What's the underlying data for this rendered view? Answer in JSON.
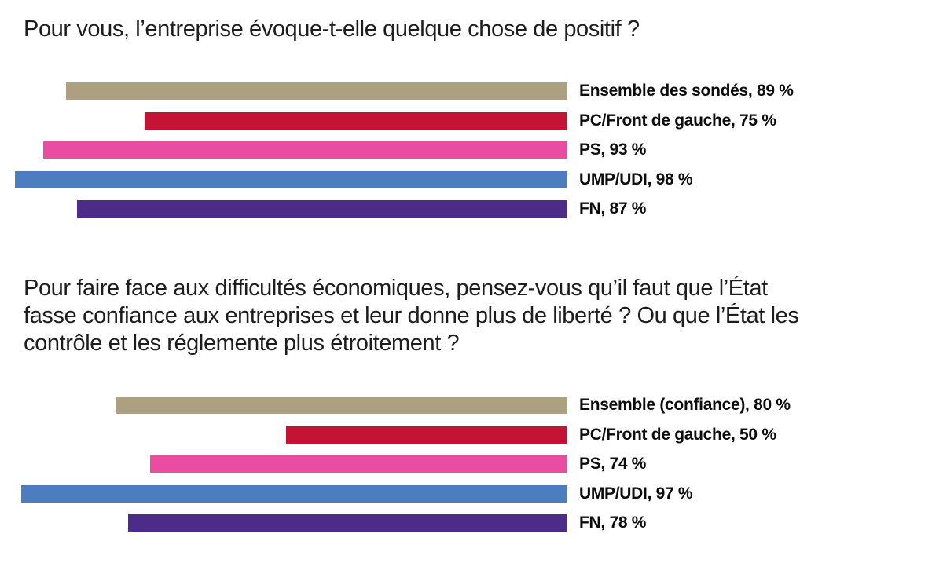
{
  "question1": {
    "text": "Pour vous, l’entreprise évoque-t-elle quelque chose de positif ?"
  },
  "question2": {
    "lines": [
      "Pour faire face aux difficultés économiques, pensez-vous qu’il faut que l’État",
      "fasse confiance aux entreprises et leur donne plus de liberté ? Ou que l’État les",
      "contrôle et les réglemente plus étroitement ?"
    ]
  },
  "chart_data": [
    {
      "type": "bar",
      "orientation": "horizontal",
      "bar_alignment": "right",
      "title": "Pour vous, l’entreprise évoque-t-elle quelque chose de positif ?",
      "categories": [
        "Ensemble des sondés",
        "PC/Front de gauche",
        "PS",
        "UMP/UDI",
        "FN"
      ],
      "values": [
        89,
        75,
        93,
        98,
        87
      ],
      "labels": [
        "Ensemble des sondés, 89 %",
        "PC/Front de gauche, 75 %",
        "PS, 93 %",
        "UMP/UDI, 98 %",
        "FN, 87 %"
      ],
      "colors": [
        "#ADA081",
        "#C41436",
        "#EA4CA2",
        "#4C7EBF",
        "#4C2B89"
      ],
      "xlim": [
        0,
        100
      ],
      "value_suffix": " %",
      "grid": false,
      "legend": false
    },
    {
      "type": "bar",
      "orientation": "horizontal",
      "bar_alignment": "right",
      "title": "Pour faire face aux difficultés économiques, pensez-vous qu’il faut que l’État fasse confiance aux entreprises et leur donne plus de liberté ? Ou que l’État les contrôle et les réglemente plus étroitement ?",
      "categories": [
        "Ensemble (confiance)",
        "PC/Front de gauche",
        "PS",
        "UMP/UDI",
        "FN"
      ],
      "values": [
        80,
        50,
        74,
        97,
        78
      ],
      "labels": [
        "Ensemble (confiance), 80 %",
        "PC/Front de gauche, 50 %",
        "PS, 74 %",
        "UMP/UDI, 97 %",
        "FN, 78 %"
      ],
      "colors": [
        "#ADA081",
        "#C41436",
        "#EA4CA2",
        "#4C7EBF",
        "#4C2B89"
      ],
      "xlim": [
        0,
        100
      ],
      "value_suffix": " %",
      "grid": false,
      "legend": false
    }
  ]
}
